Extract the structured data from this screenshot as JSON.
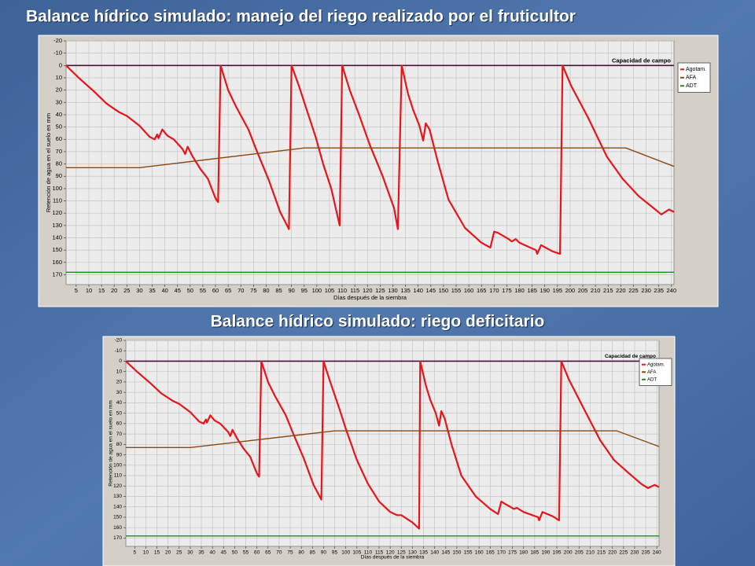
{
  "chart_data": [
    {
      "type": "line",
      "title": "Balance hídrico simulado: manejo del riego realizado por el fruticultor",
      "x_label": "Días después de la siembra",
      "y_label": "Retención de agua en el suelo en mm",
      "reference_line": {
        "label": "Capacidad de campo",
        "value": 0,
        "color": "#4b0f3f"
      },
      "xlim": [
        1,
        241
      ],
      "ylim": [
        -20,
        178
      ],
      "y_inverted": true,
      "grid": true,
      "legend": "upper right",
      "xticks": [
        5,
        10,
        15,
        20,
        25,
        30,
        35,
        40,
        45,
        50,
        55,
        60,
        65,
        70,
        75,
        80,
        85,
        90,
        95,
        100,
        105,
        110,
        115,
        120,
        125,
        130,
        135,
        140,
        145,
        150,
        155,
        160,
        165,
        170,
        175,
        180,
        185,
        190,
        195,
        200,
        205,
        210,
        215,
        220,
        225,
        230,
        235,
        240
      ],
      "yticks": [
        -20,
        -10,
        0,
        10,
        20,
        30,
        40,
        50,
        60,
        70,
        80,
        90,
        100,
        110,
        120,
        130,
        140,
        150,
        160,
        170
      ],
      "series": [
        {
          "name": "Agotam.",
          "color": "#e8141a",
          "x": [
            1,
            6,
            12,
            17,
            22,
            25,
            30,
            34,
            36,
            37,
            37.5,
            39,
            41,
            43.5,
            47,
            48,
            49,
            51,
            54,
            57,
            60,
            61,
            62,
            65,
            68,
            73,
            76,
            81,
            85.5,
            89,
            90,
            93,
            96,
            99.5,
            102.5,
            105.7,
            109,
            110,
            113,
            116.5,
            121,
            126,
            130.5,
            132,
            133.5,
            136,
            138,
            140.5,
            142,
            143,
            144.5,
            147.6,
            152,
            158.5,
            165,
            168.5,
            170,
            171.5,
            175.7,
            177,
            178.5,
            180,
            186.5,
            187,
            188.5,
            193,
            196,
            197,
            200.5,
            207,
            214.5,
            220.7,
            227,
            233,
            236,
            239,
            241
          ],
          "values": [
            0,
            10,
            21,
            31,
            38,
            41,
            49,
            58,
            60,
            56,
            59,
            52,
            57,
            60,
            68,
            72,
            66,
            74,
            84,
            92,
            108,
            111,
            0,
            20,
            33,
            52,
            68,
            93,
            119,
            133,
            0,
            17,
            36,
            58,
            80,
            100,
            130,
            0,
            20,
            39,
            65,
            90,
            116,
            133,
            0,
            23,
            36,
            49,
            61,
            47,
            52,
            77,
            109,
            132,
            144,
            148,
            135,
            136,
            141,
            143,
            141,
            144,
            150,
            153,
            146,
            151,
            153,
            0,
            17,
            42,
            74,
            92,
            106,
            116,
            121,
            117,
            119
          ]
        },
        {
          "name": "AFA",
          "color": "#8a4a14",
          "x": [
            1,
            30,
            95,
            222,
            241
          ],
          "values": [
            83,
            83,
            67,
            67,
            82
          ]
        },
        {
          "name": "ADT",
          "color": "#1a8a1a",
          "x": [
            1,
            241
          ],
          "values": [
            168,
            168
          ]
        }
      ]
    },
    {
      "type": "line",
      "title": "Balance hídrico simulado:  riego deficitario",
      "x_label": "Días después de la siembra",
      "y_label": "Retención de agua en el suelo en mm",
      "reference_line": {
        "label": "Capacidad de campo",
        "value": 0,
        "color": "#4b0f3f"
      },
      "xlim": [
        1,
        241
      ],
      "ylim": [
        -20,
        178
      ],
      "y_inverted": true,
      "grid": true,
      "legend": "upper right",
      "xticks": [
        5,
        10,
        15,
        20,
        25,
        30,
        35,
        40,
        45,
        50,
        55,
        60,
        65,
        70,
        75,
        80,
        85,
        90,
        95,
        100,
        105,
        110,
        115,
        120,
        125,
        130,
        135,
        140,
        145,
        150,
        155,
        160,
        165,
        170,
        175,
        180,
        185,
        190,
        195,
        200,
        205,
        210,
        215,
        220,
        225,
        230,
        235,
        240
      ],
      "yticks": [
        -20,
        -10,
        0,
        10,
        20,
        30,
        40,
        50,
        60,
        70,
        80,
        90,
        100,
        110,
        120,
        130,
        140,
        150,
        160,
        170
      ],
      "series": [
        {
          "name": "Agotam.",
          "color": "#e8141a",
          "x": [
            1,
            6,
            12,
            17,
            22,
            25,
            30,
            34,
            36,
            37,
            37.5,
            39,
            41,
            43.5,
            47,
            48,
            49,
            51,
            54,
            57,
            60,
            61,
            62,
            65,
            68,
            73,
            76,
            81,
            85.5,
            89,
            90,
            93,
            97,
            100,
            105,
            110,
            115,
            120,
            123,
            125,
            130,
            133,
            133.5,
            136,
            138,
            140.5,
            142,
            143,
            144.5,
            147.6,
            152,
            158.5,
            165,
            168.5,
            170,
            171.5,
            175.7,
            177,
            178.5,
            180,
            186.5,
            187,
            188.5,
            193,
            196,
            197,
            200.5,
            207,
            214.5,
            220.7,
            227,
            233,
            236,
            239,
            241
          ],
          "values": [
            0,
            10,
            21,
            31,
            38,
            41,
            49,
            58,
            60,
            56,
            59,
            52,
            57,
            60,
            68,
            72,
            66,
            74,
            84,
            92,
            108,
            111,
            0,
            20,
            33,
            52,
            68,
            93,
            119,
            133,
            0,
            20,
            45,
            65,
            95,
            118,
            135,
            145,
            148,
            148,
            155,
            161,
            0,
            23,
            37,
            50,
            62,
            48,
            55,
            80,
            110,
            130,
            142,
            147,
            135,
            137,
            142,
            141,
            143,
            145,
            150,
            153,
            145,
            149,
            153,
            0,
            18,
            45,
            76,
            95,
            107,
            118,
            122,
            119,
            121
          ]
        },
        {
          "name": "AFA",
          "color": "#8a4a14",
          "x": [
            1,
            30,
            95,
            222,
            241
          ],
          "values": [
            83,
            83,
            67,
            67,
            82
          ]
        },
        {
          "name": "ADT",
          "color": "#1a8a1a",
          "x": [
            1,
            241
          ],
          "values": [
            168,
            168
          ]
        }
      ]
    }
  ]
}
